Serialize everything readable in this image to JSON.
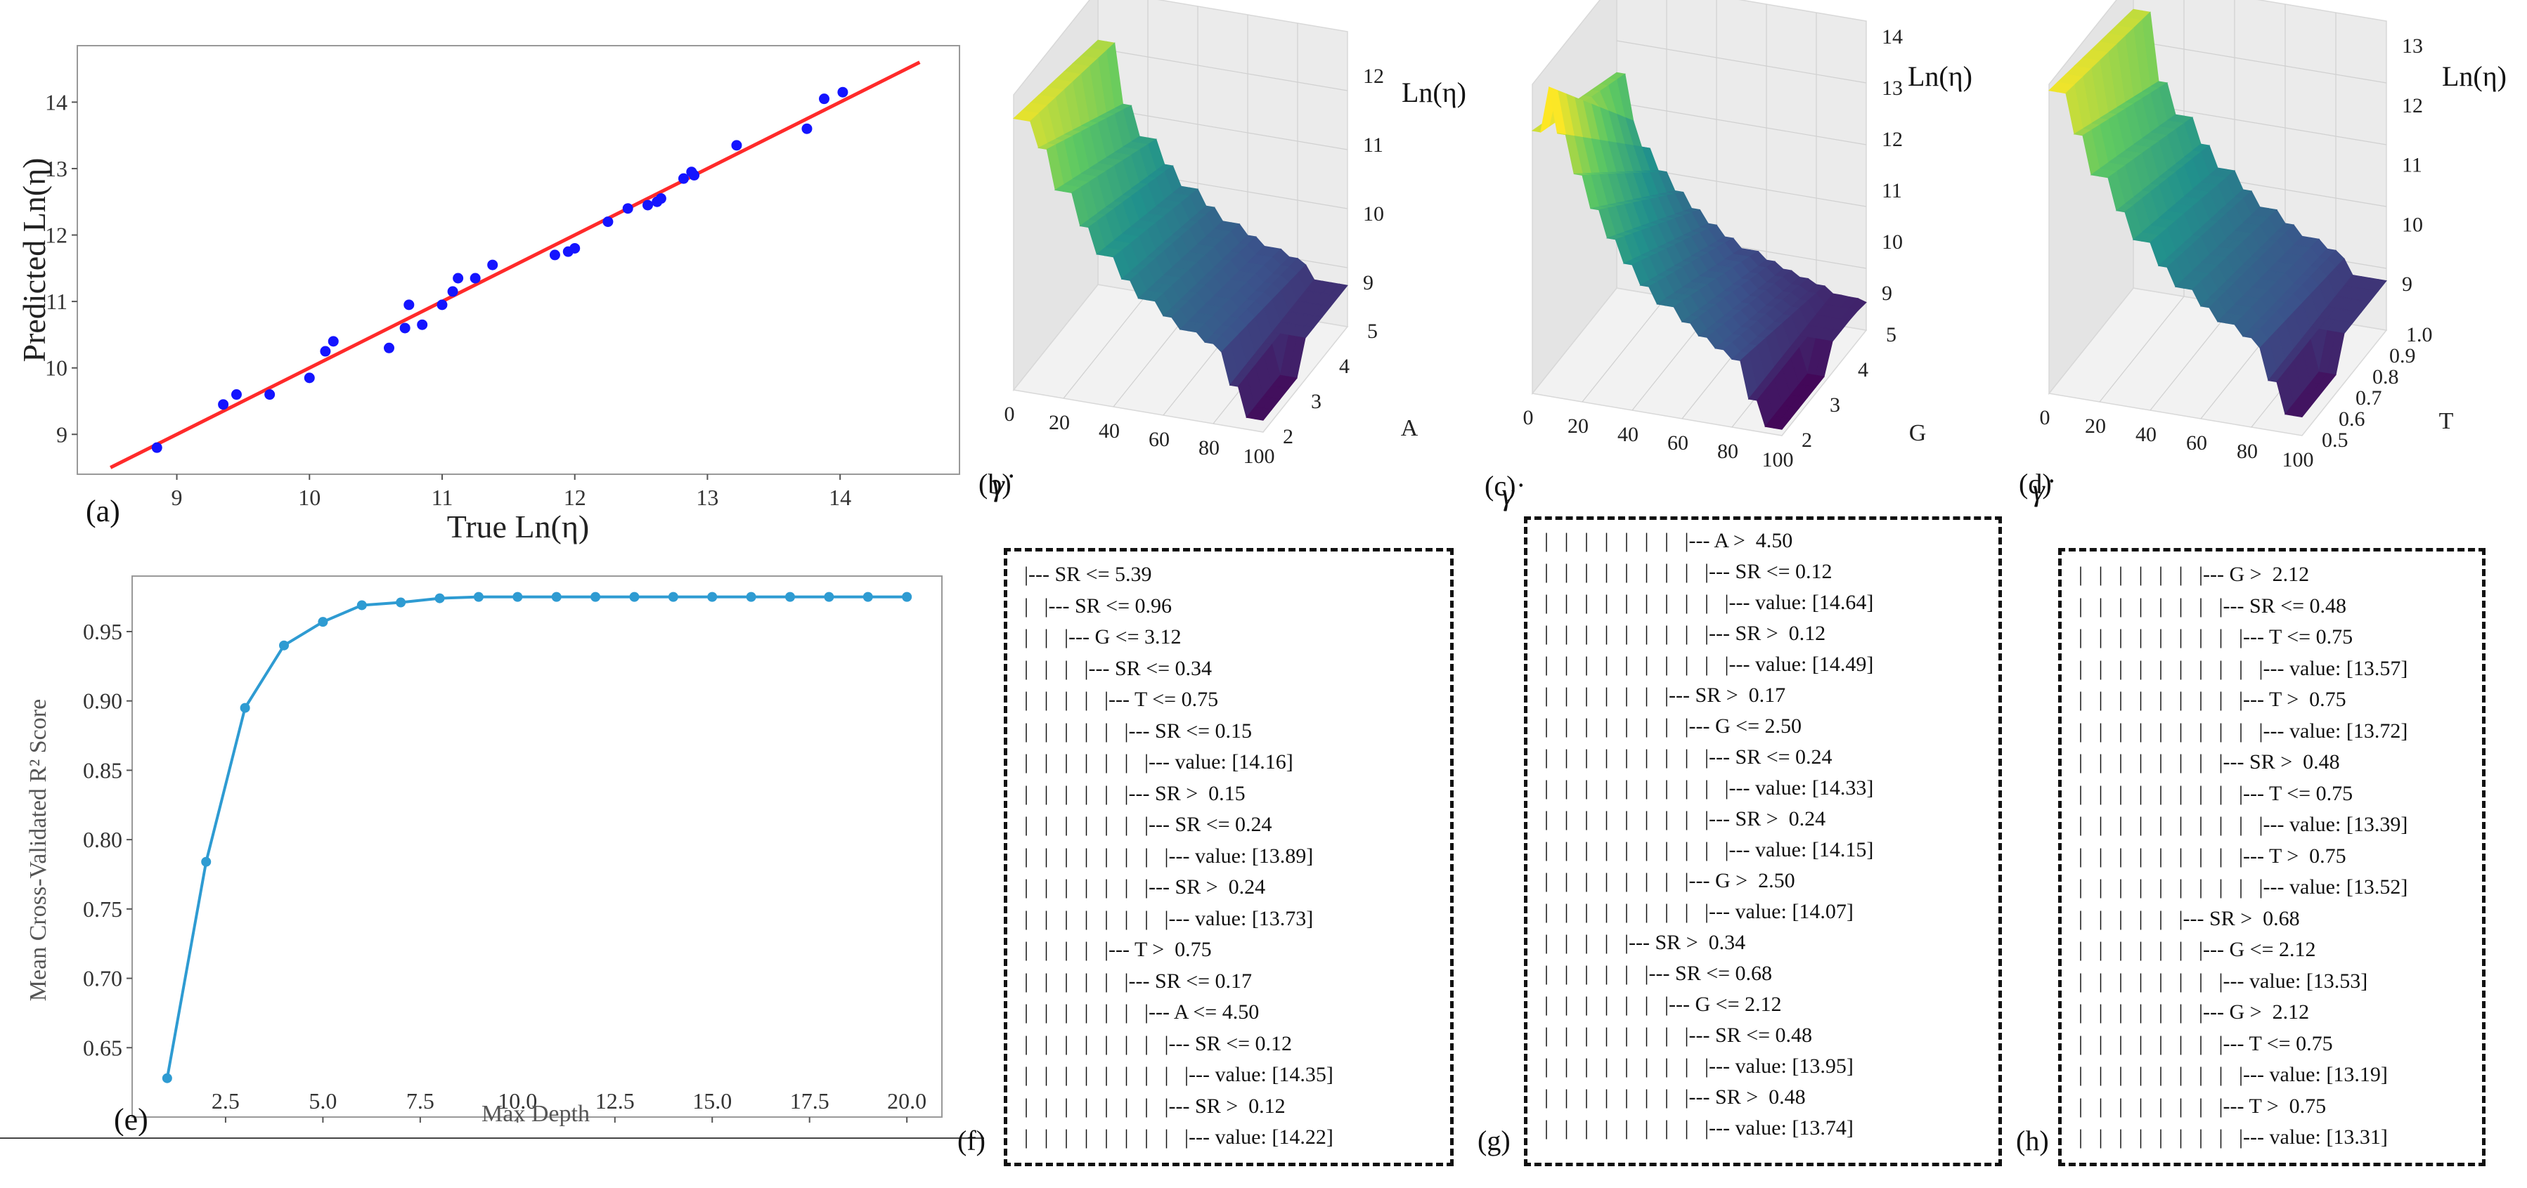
{
  "panel_labels": {
    "a": "(a)",
    "b": "(b)",
    "c": "(c)",
    "d": "(d)",
    "e": "(e)",
    "f": "(f)",
    "g": "(g)",
    "h": "(h)"
  },
  "colors": {
    "points": "#1414ff",
    "fit_line": "#ff2a2a",
    "depth_line": "#2e9bd2",
    "surface_high": "#fde725",
    "surface_mid": "#21918c",
    "surface_low": "#440154"
  },
  "chart_data": [
    {
      "id": "a",
      "type": "scatter",
      "xlabel": "True Ln(η)",
      "ylabel": "Predicted Ln(η)",
      "xlim": [
        8.25,
        14.9
      ],
      "ylim": [
        8.4,
        14.85
      ],
      "xticks": [
        9,
        10,
        11,
        12,
        13,
        14
      ],
      "yticks": [
        9,
        10,
        11,
        12,
        13,
        14
      ],
      "x": [
        8.85,
        9.35,
        9.45,
        9.7,
        10.0,
        10.12,
        10.18,
        10.6,
        10.72,
        10.75,
        10.85,
        11.0,
        11.08,
        11.12,
        11.25,
        11.38,
        11.85,
        11.95,
        12.0,
        12.25,
        12.4,
        12.55,
        12.62,
        12.65,
        12.82,
        12.88,
        12.9,
        13.22,
        13.75,
        13.88,
        14.02
      ],
      "y": [
        8.8,
        9.45,
        9.6,
        9.6,
        9.85,
        10.25,
        10.4,
        10.3,
        10.6,
        10.95,
        10.65,
        10.95,
        11.15,
        11.35,
        11.35,
        11.55,
        11.7,
        11.75,
        11.8,
        12.2,
        12.4,
        12.45,
        12.5,
        12.55,
        12.85,
        12.95,
        12.9,
        13.35,
        13.6,
        14.05,
        14.15
      ],
      "fit_line": {
        "x": [
          8.5,
          14.6
        ],
        "y": [
          8.5,
          14.6
        ]
      }
    },
    {
      "id": "e",
      "type": "line",
      "xlabel": "Max Depth",
      "ylabel": "Mean Cross-Validated R² Score",
      "xlim": [
        0.1,
        20.9
      ],
      "ylim": [
        0.6,
        0.99
      ],
      "xticks": [
        2.5,
        5.0,
        7.5,
        10.0,
        12.5,
        15.0,
        17.5,
        20.0
      ],
      "xtick_labels": [
        "2.5",
        "5.0",
        "7.5",
        "10.0",
        "12.5",
        "15.0",
        "17.5",
        "20.0"
      ],
      "yticks": [
        0.65,
        0.7,
        0.75,
        0.8,
        0.85,
        0.9,
        0.95
      ],
      "ytick_labels": [
        "0.65",
        "0.70",
        "0.75",
        "0.80",
        "0.85",
        "0.90",
        "0.95"
      ],
      "x": [
        1,
        2,
        3,
        4,
        5,
        6,
        7,
        8,
        9,
        10,
        11,
        12,
        13,
        14,
        15,
        16,
        17,
        18,
        19,
        20
      ],
      "y": [
        0.628,
        0.784,
        0.895,
        0.94,
        0.957,
        0.969,
        0.971,
        0.974,
        0.975,
        0.975,
        0.975,
        0.975,
        0.975,
        0.975,
        0.975,
        0.975,
        0.975,
        0.975,
        0.975,
        0.975
      ]
    },
    {
      "id": "b",
      "type": "surface3d",
      "zlabel": "Ln(η)",
      "xlabel": "γ̇",
      "ylabel": "A",
      "xticks": [
        "0",
        "20",
        "40",
        "60",
        "80",
        "100"
      ],
      "yticks": [
        "2",
        "3",
        "4",
        "5"
      ],
      "zticks": [
        "9",
        "10",
        "11",
        "12"
      ]
    },
    {
      "id": "c",
      "type": "surface3d",
      "zlabel": "Ln(η)",
      "xlabel": "γ̇",
      "ylabel": "G",
      "xticks": [
        "0",
        "20",
        "40",
        "60",
        "80",
        "100"
      ],
      "yticks": [
        "2",
        "3",
        "4",
        "5"
      ],
      "zticks": [
        "9",
        "10",
        "11",
        "12",
        "13",
        "14"
      ]
    },
    {
      "id": "d",
      "type": "surface3d",
      "zlabel": "Ln(η)",
      "xlabel": "γ̇",
      "ylabel": "T",
      "xticks": [
        "0",
        "20",
        "40",
        "60",
        "80",
        "100"
      ],
      "yticks": [
        "0.5",
        "0.6",
        "0.7",
        "0.8",
        "0.9",
        "1.0"
      ],
      "zticks": [
        "9",
        "10",
        "11",
        "12",
        "13"
      ]
    }
  ],
  "trees": {
    "f": [
      "|--- SR <= 5.39",
      "|   |--- SR <= 0.96",
      "|   |   |--- G <= 3.12",
      "|   |   |   |--- SR <= 0.34",
      "|   |   |   |   |--- T <= 0.75",
      "|   |   |   |   |   |--- SR <= 0.15",
      "|   |   |   |   |   |   |--- value: [14.16]",
      "|   |   |   |   |   |--- SR >  0.15",
      "|   |   |   |   |   |   |--- SR <= 0.24",
      "|   |   |   |   |   |   |   |--- value: [13.89]",
      "|   |   |   |   |   |   |--- SR >  0.24",
      "|   |   |   |   |   |   |   |--- value: [13.73]",
      "|   |   |   |   |--- T >  0.75",
      "|   |   |   |   |   |--- SR <= 0.17",
      "|   |   |   |   |   |   |--- A <= 4.50",
      "|   |   |   |   |   |   |   |--- SR <= 0.12",
      "|   |   |   |   |   |   |   |   |--- value: [14.35]",
      "|   |   |   |   |   |   |   |--- SR >  0.12",
      "|   |   |   |   |   |   |   |   |--- value: [14.22]"
    ],
    "g": [
      "|   |   |   |   |   |   |   |--- A >  4.50",
      "|   |   |   |   |   |   |   |   |--- SR <= 0.12",
      "|   |   |   |   |   |   |   |   |   |--- value: [14.64]",
      "|   |   |   |   |   |   |   |   |--- SR >  0.12",
      "|   |   |   |   |   |   |   |   |   |--- value: [14.49]",
      "|   |   |   |   |   |   |--- SR >  0.17",
      "|   |   |   |   |   |   |   |--- G <= 2.50",
      "|   |   |   |   |   |   |   |   |--- SR <= 0.24",
      "|   |   |   |   |   |   |   |   |   |--- value: [14.33]",
      "|   |   |   |   |   |   |   |   |--- SR >  0.24",
      "|   |   |   |   |   |   |   |   |   |--- value: [14.15]",
      "|   |   |   |   |   |   |   |--- G >  2.50",
      "|   |   |   |   |   |   |   |   |--- value: [14.07]",
      "|   |   |   |   |--- SR >  0.34",
      "|   |   |   |   |   |--- SR <= 0.68",
      "|   |   |   |   |   |   |--- G <= 2.12",
      "|   |   |   |   |   |   |   |--- SR <= 0.48",
      "|   |   |   |   |   |   |   |   |--- value: [13.95]",
      "|   |   |   |   |   |   |   |--- SR >  0.48",
      "|   |   |   |   |   |   |   |   |--- value: [13.74]"
    ],
    "h": [
      "|   |   |   |   |   |   |--- G >  2.12",
      "|   |   |   |   |   |   |   |--- SR <= 0.48",
      "|   |   |   |   |   |   |   |   |--- T <= 0.75",
      "|   |   |   |   |   |   |   |   |   |--- value: [13.57]",
      "|   |   |   |   |   |   |   |   |--- T >  0.75",
      "|   |   |   |   |   |   |   |   |   |--- value: [13.72]",
      "|   |   |   |   |   |   |   |--- SR >  0.48",
      "|   |   |   |   |   |   |   |   |--- T <= 0.75",
      "|   |   |   |   |   |   |   |   |   |--- value: [13.39]",
      "|   |   |   |   |   |   |   |   |--- T >  0.75",
      "|   |   |   |   |   |   |   |   |   |--- value: [13.52]",
      "|   |   |   |   |   |--- SR >  0.68",
      "|   |   |   |   |   |   |--- G <= 2.12",
      "|   |   |   |   |   |   |   |--- value: [13.53]",
      "|   |   |   |   |   |   |--- G >  2.12",
      "|   |   |   |   |   |   |   |--- T <= 0.75",
      "|   |   |   |   |   |   |   |   |--- value: [13.19]",
      "|   |   |   |   |   |   |   |--- T >  0.75",
      "|   |   |   |   |   |   |   |   |--- value: [13.31]"
    ]
  }
}
